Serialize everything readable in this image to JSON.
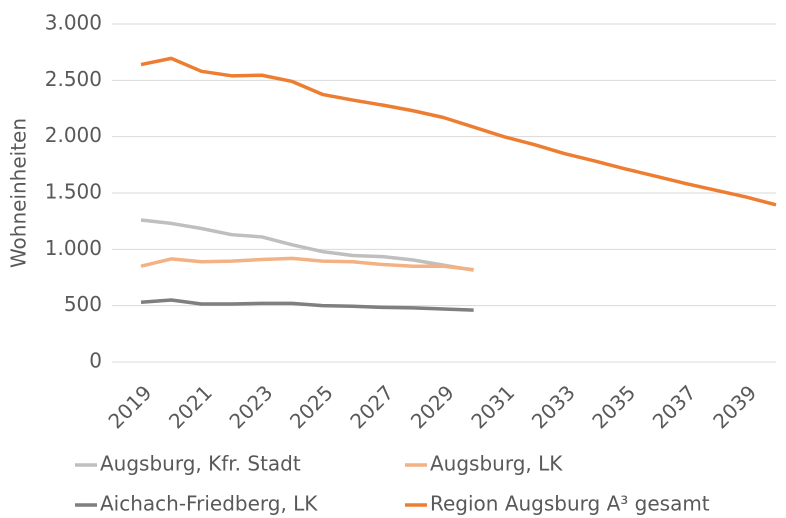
{
  "chart_data": {
    "type": "line",
    "y_label": "Wohneinheiten",
    "x": [
      2019,
      2020,
      2021,
      2022,
      2023,
      2024,
      2025,
      2026,
      2027,
      2028,
      2029,
      2030,
      2031,
      2032,
      2033,
      2034,
      2035,
      2036,
      2037,
      2038,
      2039,
      2040
    ],
    "xlim": [
      2019,
      2040
    ],
    "xticks": [
      2019,
      2021,
      2023,
      2025,
      2027,
      2029,
      2031,
      2033,
      2035,
      2037,
      2039
    ],
    "ylim": [
      0,
      3000
    ],
    "yticks": [
      0,
      500,
      {
        "value": 1000,
        "label": "1.000"
      },
      {
        "value": 1500,
        "label": "1.500"
      },
      {
        "value": 2000,
        "label": "2.000"
      },
      {
        "value": 2500,
        "label": "2.500"
      },
      {
        "value": 3000,
        "label": "3.000"
      }
    ],
    "grid": true,
    "legend": "bottom",
    "series": [
      {
        "name": "Augsburg, Kfr. Stadt",
        "color": "#bfbfbf",
        "values": [
          1260,
          1230,
          1185,
          1130,
          1110,
          1040,
          980,
          945,
          935,
          905,
          860,
          815,
          null,
          null,
          null,
          null,
          null,
          null,
          null,
          null,
          null,
          null
        ]
      },
      {
        "name": "Augsburg, LK",
        "color": "#f4b183",
        "values": [
          850,
          915,
          890,
          895,
          910,
          920,
          895,
          890,
          865,
          850,
          850,
          820,
          null,
          null,
          null,
          null,
          null,
          null,
          null,
          null,
          null,
          null
        ]
      },
      {
        "name": "Aichach-Friedberg, LK",
        "color": "#7f7f7f",
        "values": [
          530,
          550,
          515,
          515,
          520,
          520,
          500,
          495,
          485,
          480,
          470,
          460,
          null,
          null,
          null,
          null,
          null,
          null,
          null,
          null,
          null,
          null
        ]
      },
      {
        "name": "Region Augsburg A³ gesamt",
        "color": "#ed7d31",
        "values": [
          2640,
          2695,
          2580,
          2540,
          2545,
          2490,
          2375,
          2325,
          2280,
          2230,
          2170,
          2085,
          2000,
          1930,
          1850,
          1785,
          1715,
          1650,
          1585,
          1525,
          1465,
          1395
        ]
      }
    ]
  }
}
